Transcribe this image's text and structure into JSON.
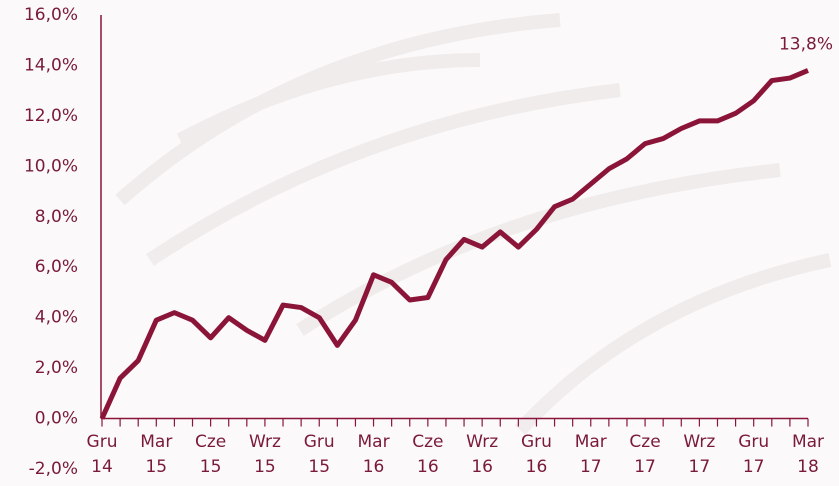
{
  "chart_data": {
    "type": "line",
    "categories": [
      "Gru 14",
      null,
      null,
      "Mar 15",
      null,
      null,
      "Cze 15",
      null,
      null,
      "Wrz 15",
      null,
      null,
      "Gru 15",
      null,
      null,
      "Mar 16",
      null,
      null,
      "Cze 16",
      null,
      null,
      "Wrz 16",
      null,
      null,
      "Gru 16",
      null,
      null,
      "Mar 17",
      null,
      null,
      "Cze 17",
      null,
      null,
      "Wrz 17",
      null,
      null,
      "Gru 17",
      null,
      null,
      "Mar 18"
    ],
    "values": [
      0,
      1.6,
      2.3,
      3.9,
      4.2,
      3.9,
      3.2,
      4.0,
      3.5,
      3.1,
      4.5,
      4.4,
      4.0,
      2.9,
      3.9,
      5.7,
      5.4,
      4.7,
      4.8,
      6.3,
      7.1,
      6.8,
      7.4,
      6.8,
      7.5,
      8.4,
      8.7,
      9.3,
      9.9,
      10.3,
      10.9,
      11.1,
      11.5,
      11.8,
      11.8,
      12.1,
      12.6,
      13.4,
      13.5,
      13.8
    ],
    "value_labels": [
      null,
      null,
      null,
      null,
      null,
      null,
      null,
      null,
      null,
      null,
      null,
      null,
      null,
      null,
      null,
      null,
      null,
      null,
      null,
      null,
      null,
      null,
      null,
      null,
      null,
      null,
      null,
      null,
      null,
      null,
      null,
      null,
      null,
      null,
      null,
      null,
      null,
      null,
      null,
      "13,8%"
    ],
    "color": "#8a1538",
    "ylim": [
      -2,
      16
    ],
    "yticks": [
      {
        "value": -2,
        "label": "-2,0%"
      },
      {
        "value": 0,
        "label": "0,0%"
      },
      {
        "value": 2,
        "label": "2,0%"
      },
      {
        "value": 4,
        "label": "4,0%"
      },
      {
        "value": 6,
        "label": "6,0%"
      },
      {
        "value": 8,
        "label": "8,0%"
      },
      {
        "value": 10,
        "label": "10,0%"
      },
      {
        "value": 12,
        "label": "12,0%"
      },
      {
        "value": 14,
        "label": "14,0%"
      },
      {
        "value": 16,
        "label": "16,0%"
      }
    ],
    "grid": false
  }
}
